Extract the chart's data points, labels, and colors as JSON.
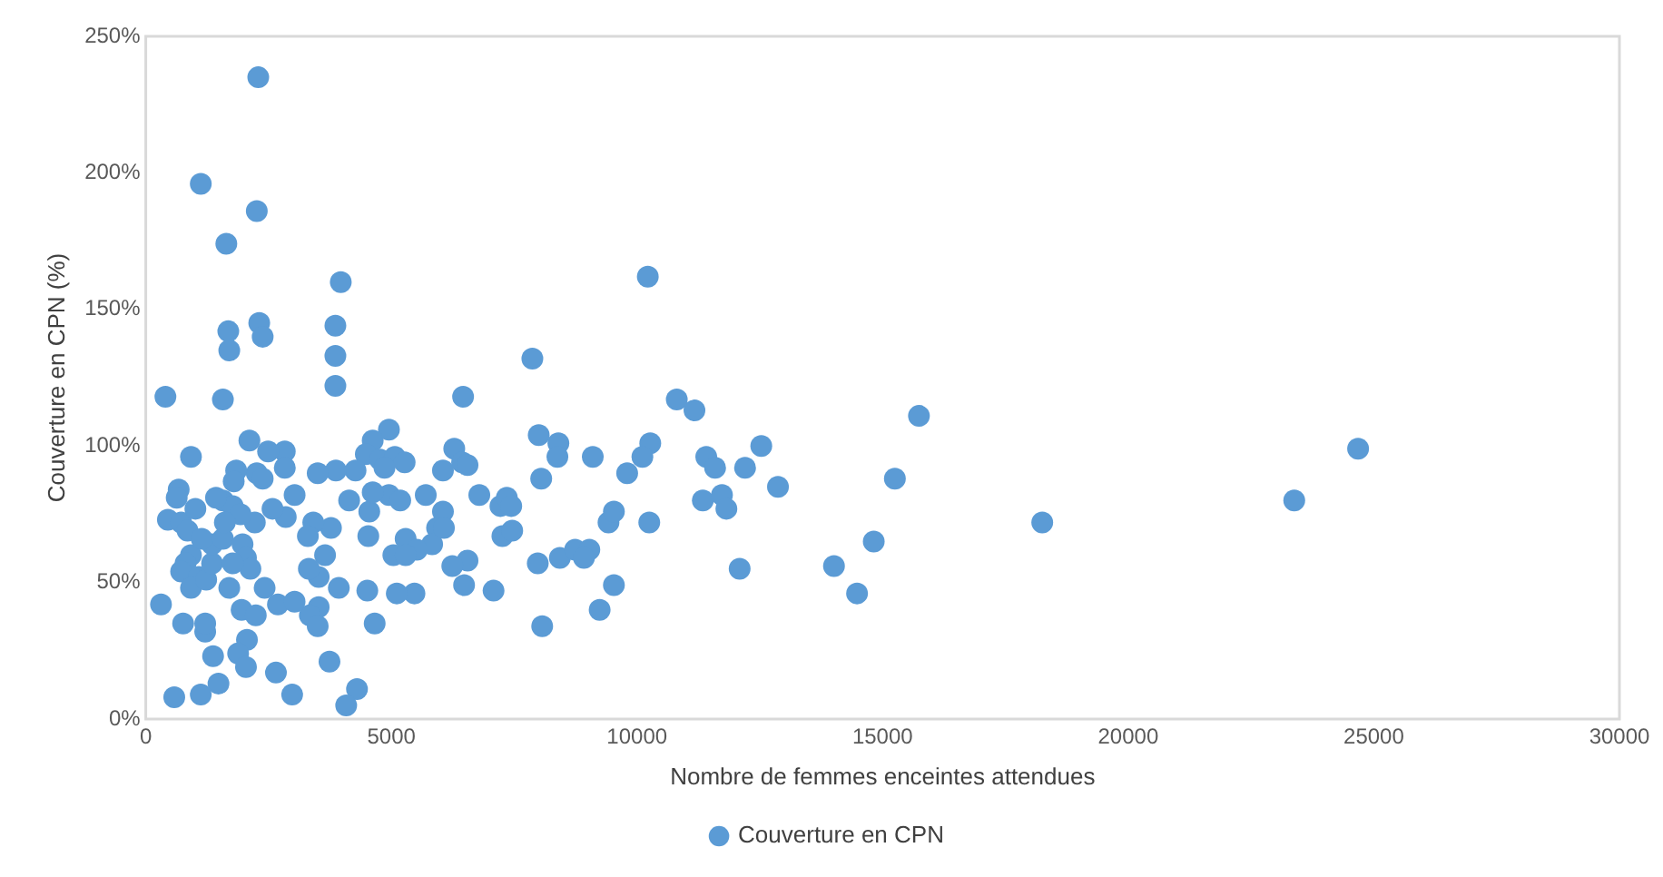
{
  "chart_data": {
    "type": "scatter",
    "xlabel": "Nombre de femmes enceintes attendues",
    "ylabel": "Couverture en CPN (%)",
    "xlim": [
      0,
      30000
    ],
    "xticks": [
      0,
      5000,
      10000,
      15000,
      20000,
      25000,
      30000
    ],
    "ylim": [
      0,
      250
    ],
    "yticks": [
      {
        "value": 0,
        "label": "0%"
      },
      {
        "value": 50,
        "label": "50%"
      },
      {
        "value": 100,
        "label": "100%"
      },
      {
        "value": 150,
        "label": "150%"
      },
      {
        "value": 200,
        "label": "200%"
      },
      {
        "value": 250,
        "label": "250%"
      }
    ],
    "grid": false,
    "legend": "bottom",
    "marker": "circle",
    "series": [
      {
        "name": "Couverture en CPN",
        "color": "#5b9bd5",
        "x": [
          2290,
          1120,
          2260,
          1640,
          3970,
          10220,
          1680,
          1700,
          2310,
          2380,
          3860,
          3860,
          3860,
          7870,
          400,
          1570,
          6460,
          10810,
          11170,
          15740,
          24680,
          23380,
          18250,
          8000,
          8400,
          8380,
          8050,
          9100,
          9800,
          10270,
          10110,
          10250,
          9420,
          9530,
          9530,
          9240,
          7980,
          8070,
          8430,
          8740,
          9030,
          8920,
          11410,
          11590,
          12200,
          12530,
          12870,
          11340,
          11730,
          11820,
          12090,
          15250,
          14010,
          14820,
          14480,
          6280,
          6440,
          6050,
          6050,
          6790,
          7220,
          7350,
          7440,
          7260,
          7460,
          7080,
          6550,
          6240,
          6480,
          5930,
          5830,
          5700,
          4950,
          4620,
          4480,
          4770,
          5070,
          5270,
          4860,
          4950,
          5180,
          4550,
          4620,
          4140,
          4270,
          3870,
          3500,
          4530,
          5290,
          5520,
          5040,
          5290,
          5470,
          5110,
          4510,
          4660,
          4300,
          4080,
          3740,
          3930,
          3650,
          3520,
          3320,
          3520,
          3340,
          3500,
          3770,
          3410,
          3300,
          3030,
          2850,
          2580,
          2220,
          2830,
          2830,
          2490,
          2110,
          2260,
          2380,
          1840,
          920,
          670,
          630,
          450,
          720,
          850,
          1010,
          920,
          810,
          720,
          1080,
          920,
          1230,
          1350,
          1350,
          1140,
          1570,
          1570,
          1770,
          1930,
          1610,
          1970,
          2040,
          2130,
          1700,
          1770,
          2420,
          1950,
          2240,
          2690,
          3030,
          2650,
          2980,
          2060,
          1880,
          2040,
          1480,
          1370,
          1210,
          1210,
          760,
          310,
          580,
          1120,
          1430,
          1790,
          6550,
          6070
        ],
        "values": [
          235,
          196,
          186,
          174,
          160,
          162,
          142,
          135,
          145,
          140,
          144,
          133,
          122,
          132,
          118,
          117,
          118,
          117,
          113,
          111,
          99,
          80,
          72,
          104,
          101,
          96,
          88,
          96,
          90,
          101,
          96,
          72,
          72,
          76,
          49,
          40,
          57,
          34,
          59,
          62,
          62,
          59,
          96,
          92,
          92,
          100,
          85,
          80,
          82,
          77,
          55,
          88,
          56,
          65,
          46,
          99,
          94,
          91,
          76,
          82,
          78,
          81,
          78,
          67,
          69,
          47,
          58,
          56,
          49,
          70,
          64,
          82,
          106,
          102,
          97,
          95,
          96,
          94,
          92,
          82,
          80,
          76,
          83,
          80,
          91,
          91,
          90,
          67,
          66,
          62,
          60,
          60,
          46,
          46,
          47,
          35,
          11,
          5,
          21,
          48,
          60,
          52,
          55,
          41,
          38,
          34,
          70,
          72,
          67,
          82,
          74,
          77,
          72,
          98,
          92,
          98,
          102,
          90,
          88,
          91,
          96,
          84,
          81,
          73,
          72,
          69,
          77,
          60,
          57,
          54,
          52,
          48,
          51,
          57,
          64,
          66,
          66,
          80,
          78,
          75,
          72,
          64,
          59,
          55,
          48,
          57,
          48,
          40,
          38,
          42,
          43,
          17,
          9,
          29,
          24,
          19,
          13,
          23,
          32,
          35,
          35,
          42,
          8,
          9,
          81,
          87,
          93,
          70
        ]
      }
    ]
  }
}
